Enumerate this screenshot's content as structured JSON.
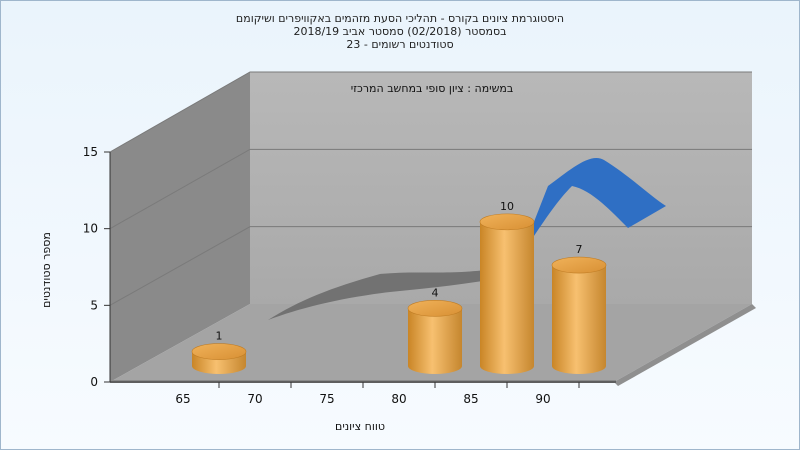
{
  "chart_data": {
    "type": "bar",
    "title_lines": [
      "היסטוגרמת ציונים בקורס - תהליכי הסעת מזהמים באקוויפרים ושיקומם",
      "בסמסטר  (02/2018)  סמסטר אביב 2018/19",
      "סטודנטים רשומים - 23"
    ],
    "annotation": "במשימה : ציון סופי במחשב המרכזי",
    "xlabel": "טווח ציונים",
    "ylabel": "מספר סטודנטים",
    "x_ticks": [
      "65",
      "70",
      "75",
      "80",
      "85",
      "90"
    ],
    "y_ticks": [
      "0",
      "5",
      "10",
      "15"
    ],
    "ylim": [
      0,
      15
    ],
    "grid": true,
    "bars": [
      {
        "category": "65",
        "value": 1
      },
      {
        "category": "80",
        "value": 4
      },
      {
        "category": "85",
        "value": 10
      },
      {
        "category": "90",
        "value": 7
      }
    ],
    "curve_colors": {
      "gray": "#6b6b6b",
      "blue": "#2f6fc4"
    },
    "bar_color": "#e4a548"
  }
}
